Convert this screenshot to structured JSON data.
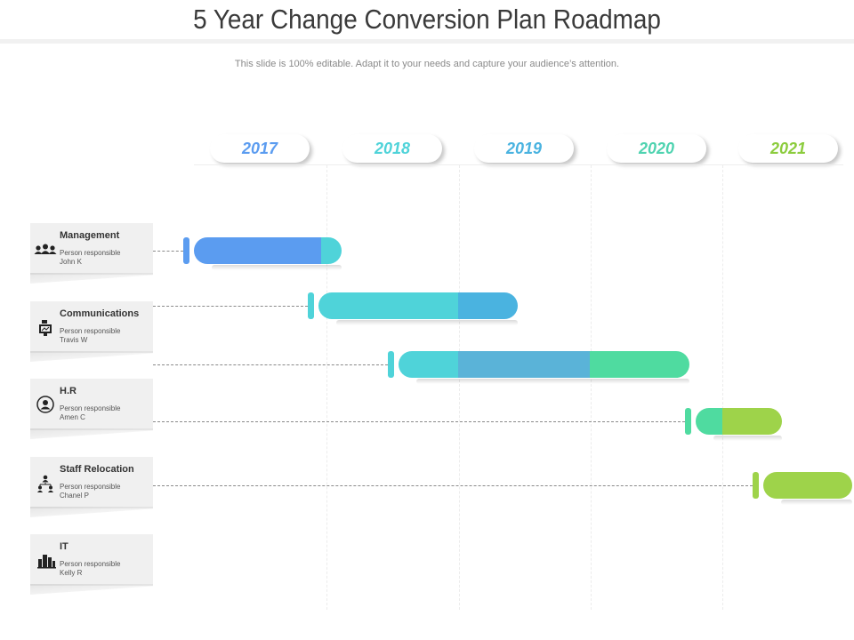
{
  "header": {
    "title": "5 Year Change Conversion Plan Roadmap",
    "subtitle": "This slide is 100% editable. Adapt it to your needs and capture your audience’s attention."
  },
  "colors": {
    "blue": "#5b9cf0",
    "teal": "#4fd3d9",
    "mid_blue": "#4ab3e0",
    "sky": "#5ab3d8",
    "green": "#4fdba0",
    "lime": "#9ed34a"
  },
  "years": [
    {
      "label": "2017",
      "color": "#5b9cf0"
    },
    {
      "label": "2018",
      "color": "#4fd3d9"
    },
    {
      "label": "2019",
      "color": "#4ab3e0"
    },
    {
      "label": "2020",
      "color": "#4fd3b0"
    },
    {
      "label": "2021",
      "color": "#8ccc3e"
    }
  ],
  "departments": [
    {
      "name": "Management",
      "responsible_label": "Person responsible",
      "person": "John K",
      "icon": "team-icon"
    },
    {
      "name": "Communications",
      "responsible_label": "Person responsible",
      "person": "Travis W",
      "icon": "presentation-icon"
    },
    {
      "name": "H.R",
      "responsible_label": "Person responsible",
      "person": "Amen C",
      "icon": "user-circle-icon"
    },
    {
      "name": "Staff Relocation",
      "responsible_label": "Person responsible",
      "person": "Chanel P",
      "icon": "hierarchy-icon"
    },
    {
      "name": "IT",
      "responsible_label": "Person responsible",
      "person": "Kelly R",
      "icon": "server-icon"
    }
  ],
  "bars": [
    {
      "row": "Management",
      "start": 2017,
      "segments": [
        {
          "end": 2017.96,
          "color": "#5b9cf0"
        },
        {
          "end": 2018.12,
          "color": "#4fd3d9"
        }
      ]
    },
    {
      "row": "Communications",
      "start": 2017.94,
      "segments": [
        {
          "end": 2019.0,
          "color": "#4fd3d9"
        },
        {
          "end": 2019.45,
          "color": "#4ab3e0"
        }
      ]
    },
    {
      "row": "H.R",
      "start": 2018.55,
      "segments": [
        {
          "end": 2019.0,
          "color": "#4fd3d9"
        },
        {
          "end": 2020.0,
          "color": "#5ab3d8"
        },
        {
          "end": 2020.75,
          "color": "#4fdba0"
        }
      ]
    },
    {
      "row": "Staff Relocation",
      "start": 2020.8,
      "segments": [
        {
          "end": 2021.0,
          "color": "#4fdba0"
        },
        {
          "end": 2021.45,
          "color": "#9ed34a"
        }
      ]
    },
    {
      "row": "IT",
      "start": 2021.31,
      "segments": [
        {
          "end": 2022.0,
          "color": "#9ed34a"
        }
      ]
    }
  ]
}
